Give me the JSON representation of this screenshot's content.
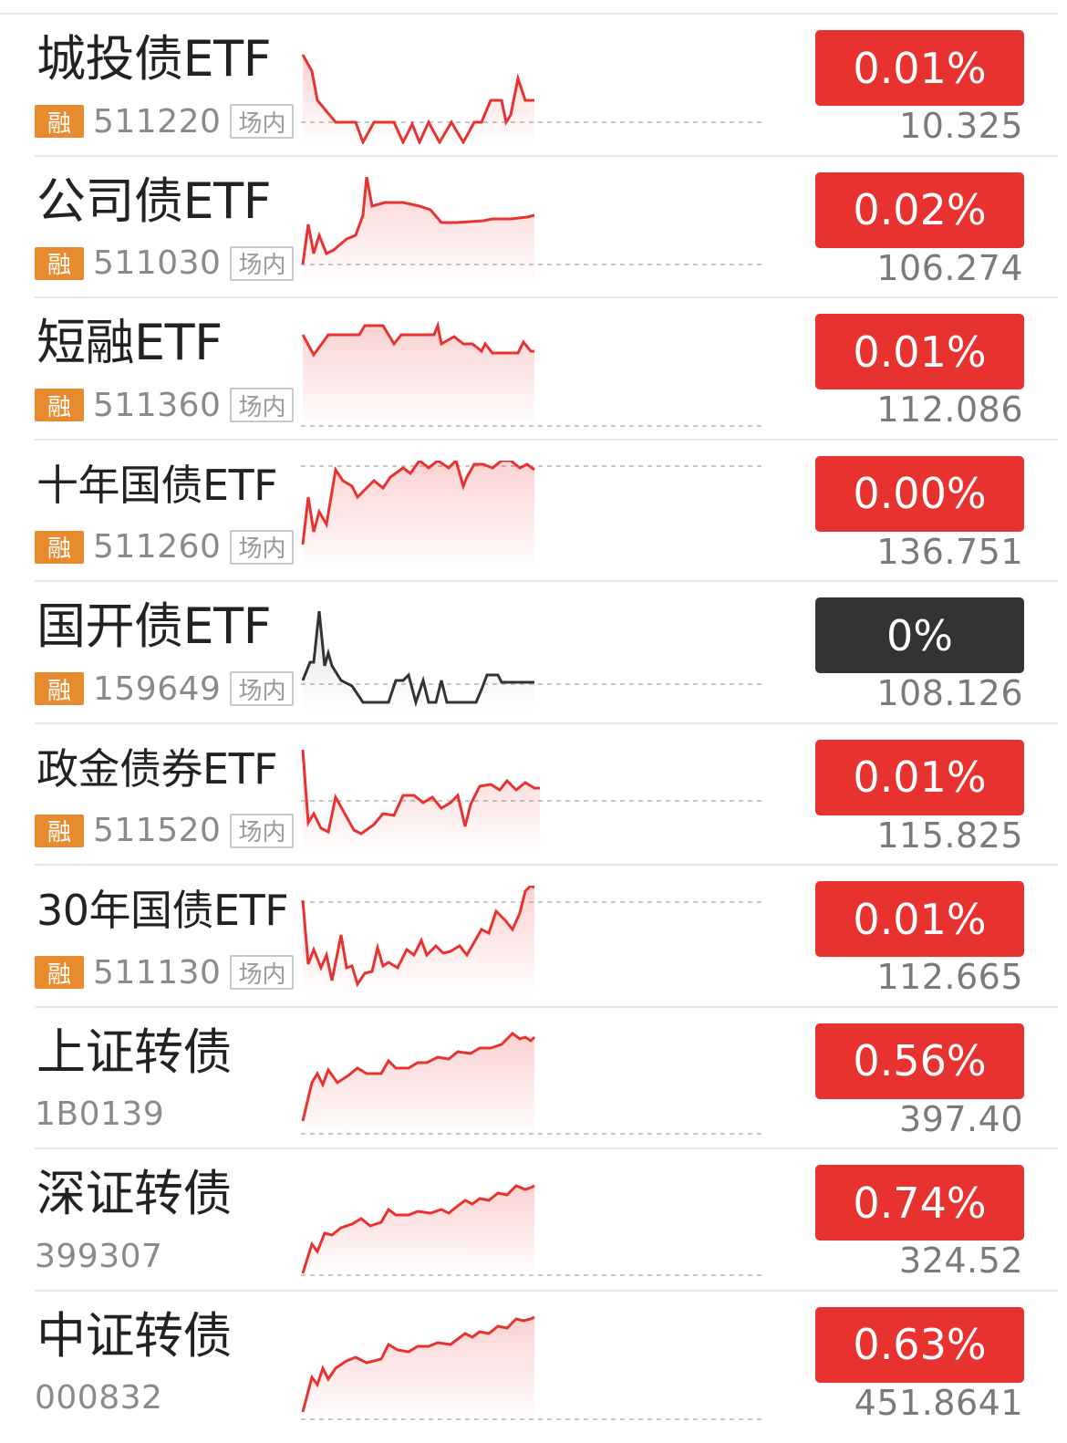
{
  "colors": {
    "up": "#e8322f",
    "flat": "#333333",
    "margin_badge": "#e88a2e"
  },
  "rows": [
    {
      "name": "城投债ETF",
      "badge": "融",
      "code": "511220",
      "market": "场内",
      "pct": "0.01%",
      "price": "10.325",
      "trend": "up"
    },
    {
      "name": "公司债ETF",
      "badge": "融",
      "code": "511030",
      "market": "场内",
      "pct": "0.02%",
      "price": "106.274",
      "trend": "up"
    },
    {
      "name": "短融ETF",
      "badge": "融",
      "code": "511360",
      "market": "场内",
      "pct": "0.01%",
      "price": "112.086",
      "trend": "up"
    },
    {
      "name": "十年国债ETF",
      "badge": "融",
      "code": "511260",
      "market": "场内",
      "pct": "0.00%",
      "price": "136.751",
      "trend": "up"
    },
    {
      "name": "国开债ETF",
      "badge": "融",
      "code": "159649",
      "market": "场内",
      "pct": "0%",
      "price": "108.126",
      "trend": "flat"
    },
    {
      "name": "政金债券ETF",
      "badge": "融",
      "code": "511520",
      "market": "场内",
      "pct": "0.01%",
      "price": "115.825",
      "trend": "up"
    },
    {
      "name": "30年国债ETF",
      "badge": "融",
      "code": "511130",
      "market": "场内",
      "pct": "0.01%",
      "price": "112.665",
      "trend": "up"
    },
    {
      "name": "上证转债",
      "badge": "",
      "code": "1B0139",
      "market": "",
      "pct": "0.56%",
      "price": "397.40",
      "trend": "up"
    },
    {
      "name": "深证转债",
      "badge": "",
      "code": "399307",
      "market": "",
      "pct": "0.74%",
      "price": "324.52",
      "trend": "up"
    },
    {
      "name": "中证转债",
      "badge": "",
      "code": "000832",
      "market": "",
      "pct": "0.63%",
      "price": "451.8641",
      "trend": "up"
    }
  ]
}
